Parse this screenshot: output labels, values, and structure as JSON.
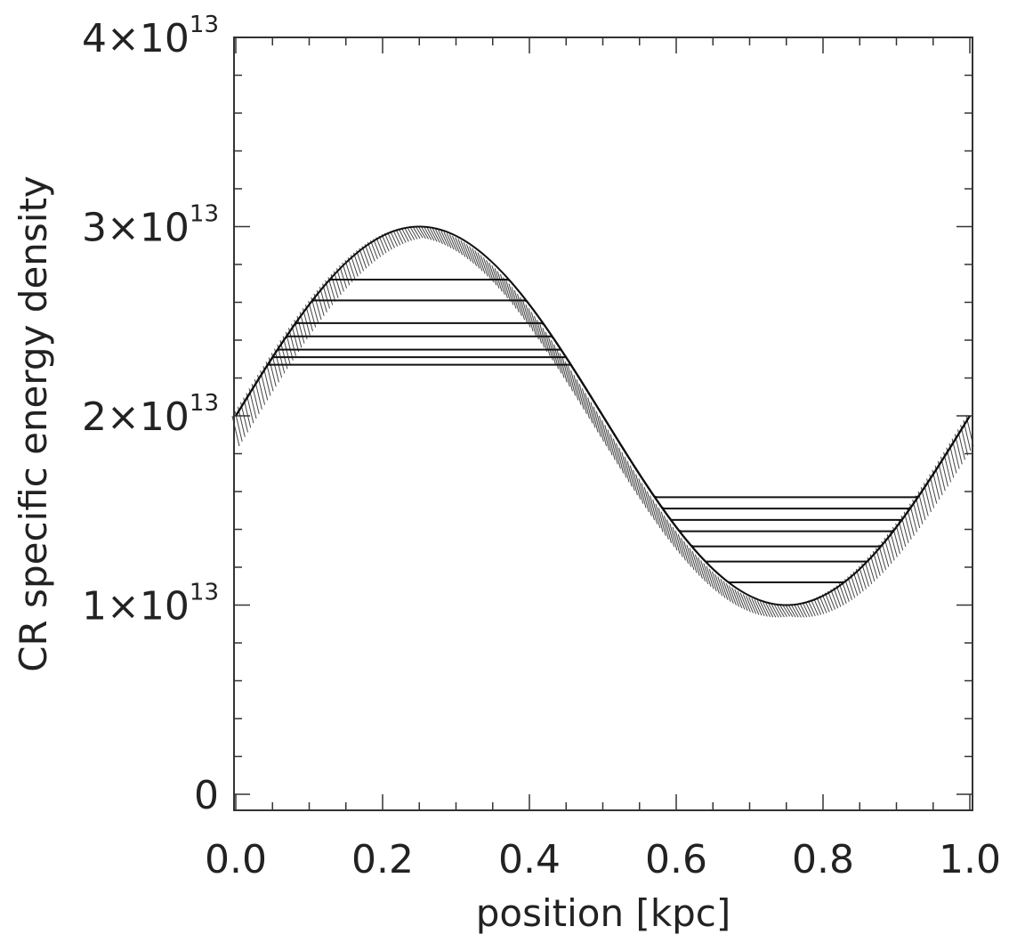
{
  "chart_data": {
    "type": "line",
    "xlabel": "position [kpc]",
    "ylabel": "CR specific energy density",
    "xlim": [
      0.0,
      1.0
    ],
    "ylim": [
      0,
      40000000000000.0
    ],
    "x_ticks": [
      {
        "value": 0.0,
        "label": "0.0"
      },
      {
        "value": 0.2,
        "label": "0.2"
      },
      {
        "value": 0.4,
        "label": "0.4"
      },
      {
        "value": 0.6,
        "label": "0.6"
      },
      {
        "value": 0.8,
        "label": "0.8"
      },
      {
        "value": 1.0,
        "label": "1.0"
      }
    ],
    "x_minor_step": 0.05,
    "y_ticks": [
      {
        "value": 0,
        "mantissa": "0",
        "exponent": ""
      },
      {
        "value": 10000000000000.0,
        "mantissa": "1×10",
        "exponent": "13"
      },
      {
        "value": 20000000000000.0,
        "mantissa": "2×10",
        "exponent": "13"
      },
      {
        "value": 30000000000000.0,
        "mantissa": "3×10",
        "exponent": "13"
      },
      {
        "value": 40000000000000.0,
        "mantissa": "4×10",
        "exponent": "13"
      }
    ],
    "y_minor_step": 2000000000000.0,
    "initial_profile": {
      "description_shape": "sinusoid",
      "mean": 20000000000000.0,
      "amplitude": 10000000000000.0,
      "period": 1.0
    },
    "plateau_levels_high": [
      22700000000000.0,
      23100000000000.0,
      23500000000000.0,
      24200000000000.0,
      24900000000000.0,
      26100000000000.0,
      27200000000000.0
    ],
    "plateau_levels_low": [
      11200000000000.0,
      12300000000000.0,
      13100000000000.0,
      13900000000000.0,
      14500000000000.0,
      15100000000000.0,
      15700000000000.0
    ],
    "grid": false
  }
}
